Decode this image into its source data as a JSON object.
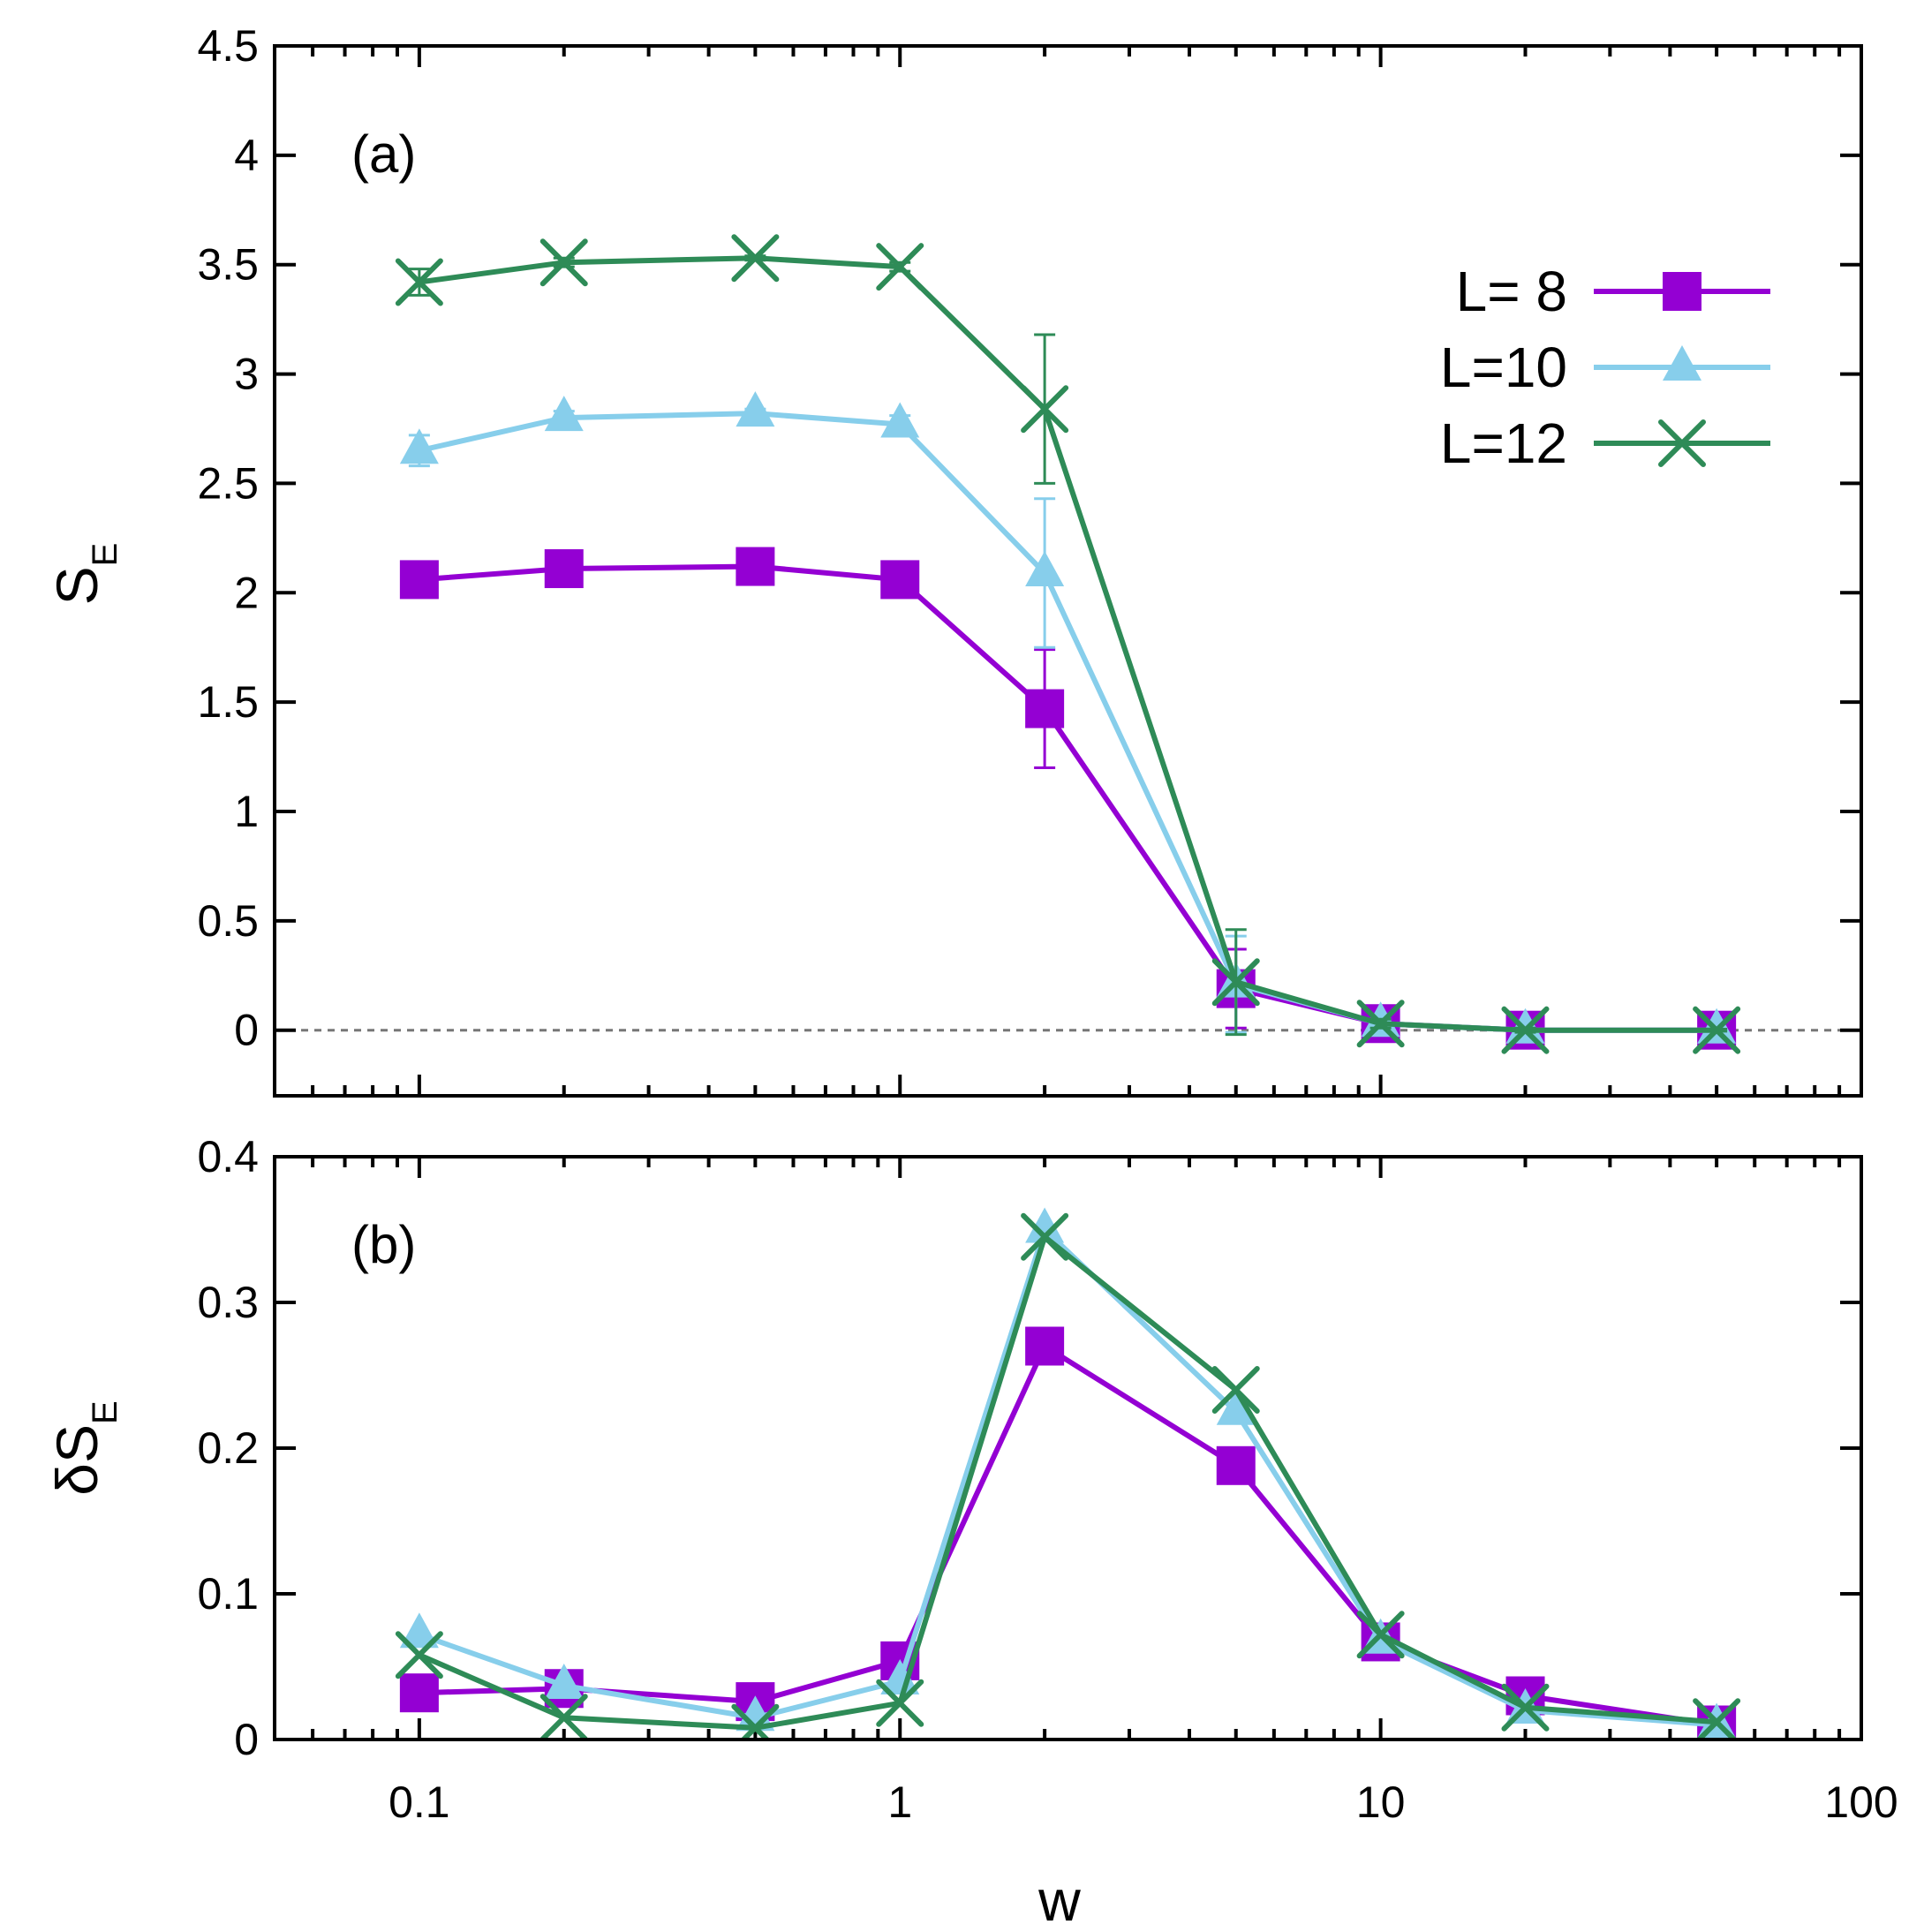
{
  "chart_data": [
    {
      "panel": "(a)",
      "type": "line",
      "panel_label": "(a)",
      "xlabel": "w",
      "ylabel_main": "S",
      "ylabel_sub": "E",
      "xscale": "log",
      "xlim": [
        0.05,
        100
      ],
      "ylim": [
        -0.3,
        4.5
      ],
      "y_ticks": [
        "0",
        "0.5",
        "1",
        "1.5",
        "2",
        "2.5",
        "3",
        "3.5",
        "4",
        "4.5"
      ],
      "x_ticks": [
        "0.1",
        "1",
        "10",
        "100"
      ],
      "zero_reference_line": true,
      "legend_position": "top-right",
      "x": [
        0.1,
        0.2,
        0.5,
        1,
        2,
        5,
        10,
        20,
        50
      ],
      "series": [
        {
          "name": "L=  8",
          "label": "L=  8",
          "color": "#9400d3",
          "marker": "square",
          "values": [
            2.06,
            2.11,
            2.12,
            2.06,
            1.47,
            0.19,
            0.03,
            0.0,
            0.0
          ],
          "errors": [
            0.03,
            0.02,
            0.02,
            0.02,
            0.27,
            0.18,
            0.02,
            0.01,
            0.005
          ]
        },
        {
          "name": "L=10",
          "label": "L=10",
          "color": "#87ceeb",
          "marker": "triangle",
          "values": [
            2.65,
            2.8,
            2.82,
            2.77,
            2.09,
            0.21,
            0.03,
            0.0,
            0.0
          ],
          "errors": [
            0.07,
            0.03,
            0.02,
            0.04,
            0.34,
            0.22,
            0.02,
            0.01,
            0.005
          ]
        },
        {
          "name": "L=12",
          "label": "L=12",
          "color": "#2e8b57",
          "marker": "x",
          "values": [
            3.42,
            3.51,
            3.53,
            3.49,
            2.84,
            0.22,
            0.03,
            0.0,
            0.0
          ],
          "errors": [
            0.06,
            0.02,
            0.01,
            0.02,
            0.34,
            0.24,
            0.02,
            0.01,
            0.005
          ]
        }
      ]
    },
    {
      "panel": "(b)",
      "type": "line",
      "panel_label": "(b)",
      "xlabel": "w",
      "ylabel_main": "δS",
      "ylabel_sub": "E",
      "xscale": "log",
      "xlim": [
        0.05,
        100
      ],
      "ylim": [
        0,
        0.4
      ],
      "y_ticks": [
        "0",
        "0.1",
        "0.2",
        "0.3",
        "0.4"
      ],
      "x_ticks": [
        "0.1",
        "1",
        "10",
        "100"
      ],
      "x": [
        0.1,
        0.2,
        0.5,
        1,
        2,
        5,
        10,
        20,
        50
      ],
      "series": [
        {
          "name": "L=  8",
          "color": "#9400d3",
          "marker": "square",
          "values": [
            0.032,
            0.035,
            0.026,
            0.054,
            0.27,
            0.188,
            0.067,
            0.03,
            0.01
          ]
        },
        {
          "name": "L=10",
          "color": "#87ceeb",
          "marker": "triangle",
          "values": [
            0.072,
            0.037,
            0.015,
            0.04,
            0.35,
            0.225,
            0.068,
            0.02,
            0.01
          ]
        },
        {
          "name": "L=12",
          "color": "#2e8b57",
          "marker": "x",
          "values": [
            0.058,
            0.015,
            0.008,
            0.025,
            0.345,
            0.24,
            0.072,
            0.022,
            0.012
          ]
        }
      ]
    }
  ]
}
